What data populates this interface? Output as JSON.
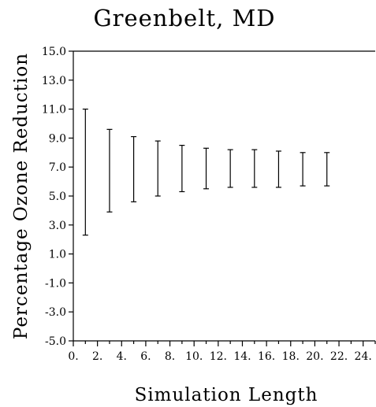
{
  "chart_data": {
    "type": "errorbar",
    "title": "Greenbelt, MD",
    "xlabel": "Simulation Length",
    "ylabel": "Percentage Ozone Reduction",
    "xlim": [
      0,
      25
    ],
    "ylim": [
      -5,
      15
    ],
    "x_ticks": [
      0,
      2,
      4,
      6,
      8,
      10,
      12,
      14,
      16,
      18,
      20,
      22,
      24
    ],
    "x_tick_labels": [
      "0.",
      "2.",
      "4.",
      "6.",
      "8.",
      "10.",
      "12.",
      "14.",
      "16.",
      "18.",
      "20.",
      "22.",
      "24."
    ],
    "y_ticks": [
      -5,
      -3,
      -1,
      1,
      3,
      5,
      7,
      9,
      11,
      13,
      15
    ],
    "y_tick_labels": [
      "-5.0",
      "-3.0",
      "-1.0",
      "1.0",
      "3.0",
      "5.0",
      "7.0",
      "9.0",
      "11.0",
      "13.0",
      "15.0"
    ],
    "series": [
      {
        "points": [
          {
            "x": 1,
            "low": 2.3,
            "high": 11.0
          },
          {
            "x": 3,
            "low": 3.9,
            "high": 9.6
          },
          {
            "x": 5,
            "low": 4.6,
            "high": 9.1
          },
          {
            "x": 7,
            "low": 5.0,
            "high": 8.8
          },
          {
            "x": 9,
            "low": 5.3,
            "high": 8.5
          },
          {
            "x": 11,
            "low": 5.5,
            "high": 8.3
          },
          {
            "x": 13,
            "low": 5.6,
            "high": 8.2
          },
          {
            "x": 15,
            "low": 5.6,
            "high": 8.2
          },
          {
            "x": 17,
            "low": 5.6,
            "high": 8.1
          },
          {
            "x": 19,
            "low": 5.7,
            "high": 8.0
          },
          {
            "x": 21,
            "low": 5.7,
            "high": 8.0
          }
        ]
      }
    ],
    "grid": false,
    "legend": "none"
  }
}
